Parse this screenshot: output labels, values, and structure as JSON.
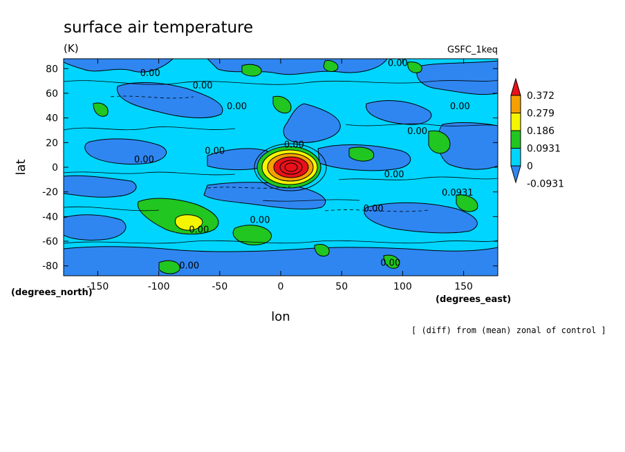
{
  "chart_data": {
    "type": "heatmap",
    "title": "surface air temperature",
    "units": "(K)",
    "model_label": "GSFC_1keq",
    "xlabel": "lon",
    "ylabel": "lat",
    "x_units_label": "(degrees_east)",
    "y_units_label": "(degrees_north)",
    "footnote": "[ (diff) from (mean) zonal of control ]",
    "xlim": [
      -178,
      178
    ],
    "ylim": [
      -88,
      88
    ],
    "x_ticks": [
      -150,
      -100,
      -50,
      0,
      50,
      100,
      150
    ],
    "y_ticks": [
      80,
      60,
      40,
      20,
      0,
      -20,
      -40,
      -60,
      -80
    ],
    "x_tick_labels": [
      "-150",
      "-100",
      "-50",
      "0",
      "50",
      "100",
      "150"
    ],
    "y_tick_labels": [
      "80",
      "60",
      "40",
      "20",
      "0",
      "-20",
      "-40",
      "-60",
      "-80"
    ],
    "colorbar": {
      "labels": [
        "0.372",
        "0.279",
        "0.186",
        "0.0931",
        "0",
        "-0.0931"
      ],
      "levels": [
        0.372,
        0.279,
        0.186,
        0.0931,
        0,
        -0.0931
      ],
      "colors": [
        "#e8111a",
        "#f5a000",
        "#f5f500",
        "#21c621",
        "#00d5ff",
        "#2f86f0"
      ],
      "extend": "both"
    },
    "contour_labels": [
      {
        "text": "0.00",
        "lon": -107,
        "lat": 74
      },
      {
        "text": "0.00",
        "lon": -64,
        "lat": 64
      },
      {
        "text": "0.00",
        "lon": -36,
        "lat": 47
      },
      {
        "text": "0.00",
        "lon": 96,
        "lat": 82
      },
      {
        "text": "0.00",
        "lon": 147,
        "lat": 47
      },
      {
        "text": "0.00",
        "lon": 112,
        "lat": 27
      },
      {
        "text": "0.00",
        "lon": 11,
        "lat": 16
      },
      {
        "text": "0.00",
        "lon": -54,
        "lat": 11
      },
      {
        "text": "0.00",
        "lon": -112,
        "lat": 4
      },
      {
        "text": "0.00",
        "lon": 93,
        "lat": -8
      },
      {
        "text": "0.0931",
        "lon": 145,
        "lat": -23
      },
      {
        "text": "0.00",
        "lon": 76,
        "lat": -36
      },
      {
        "text": "0.00",
        "lon": -17,
        "lat": -45
      },
      {
        "text": "0.00",
        "lon": -67,
        "lat": -53
      },
      {
        "text": "0.00",
        "lon": -75,
        "lat": -82
      },
      {
        "text": "0.00",
        "lon": 90,
        "lat": -80
      }
    ],
    "features": [
      {
        "name": "equatorial warm anomaly",
        "lon": 5,
        "lat": 0,
        "peak": 0.372
      },
      {
        "name": "southern warm anomaly",
        "lon": -78,
        "lat": -44,
        "peak": 0.279
      }
    ],
    "grid": false
  }
}
